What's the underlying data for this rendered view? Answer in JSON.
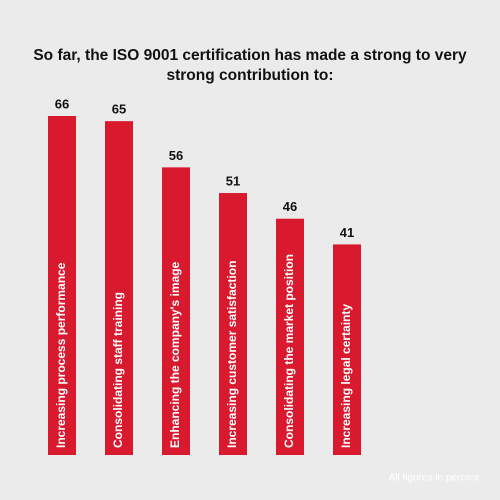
{
  "chart_data": {
    "type": "bar",
    "title": "So far, the ISO 9001 certification has made a strong to very strong contribution to:",
    "categories": [
      "Increasing process performance",
      "Consolidating staff training",
      "Enhancing the company's image",
      "Increasing customer satisfaction",
      "Consolidating the market position",
      "Increasing legal certainty"
    ],
    "values": [
      66,
      65,
      56,
      51,
      46,
      41
    ],
    "color": "#d9192e",
    "footnote": "All figures in percent."
  }
}
